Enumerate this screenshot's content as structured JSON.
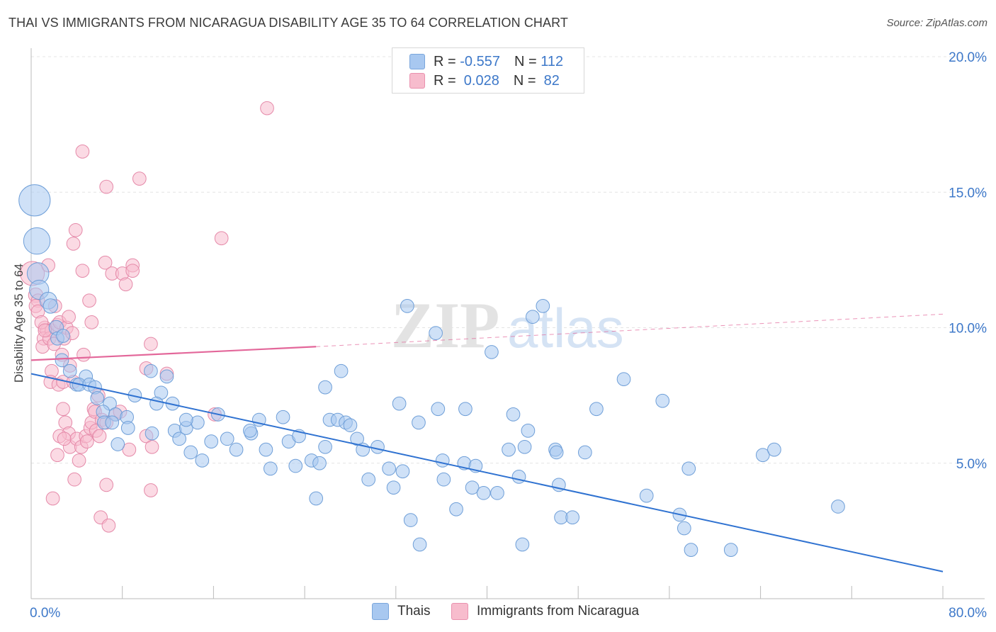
{
  "title": "THAI VS IMMIGRANTS FROM NICARAGUA DISABILITY AGE 35 TO 64 CORRELATION CHART",
  "source": "Source: ZipAtlas.com",
  "watermark": {
    "zip": "ZIP",
    "atlas": "atlas"
  },
  "legend": {
    "rows": [
      {
        "r_label": "R = ",
        "r_value": "-0.557",
        "n_label": "N = ",
        "n_value": "112",
        "color": "#a8c8f0",
        "border": "#7aa6dc"
      },
      {
        "r_label": "R = ",
        "r_value": " 0.028",
        "n_label": "N = ",
        "n_value": " 82",
        "color": "#f7bccd",
        "border": "#e991ae"
      }
    ]
  },
  "bottom_legend": [
    {
      "label": "Thais",
      "color": "#a8c8f0",
      "border": "#7aa6dc"
    },
    {
      "label": "Immigrants from Nicaragua",
      "color": "#f7bccd",
      "border": "#e991ae"
    }
  ],
  "chart_data": {
    "type": "scatter",
    "title": "THAI VS IMMIGRANTS FROM NICARAGUA DISABILITY AGE 35 TO 64 CORRELATION CHART",
    "xlabel": "",
    "ylabel": "Disability Age 35 to 64",
    "xlim": [
      0,
      80
    ],
    "ylim": [
      0,
      20
    ],
    "x_tick_labels": [
      {
        "value": 0,
        "label": "0.0%"
      },
      {
        "value": 80,
        "label": "80.0%"
      }
    ],
    "y_tick_labels": [
      {
        "value": 5,
        "label": "5.0%"
      },
      {
        "value": 10,
        "label": "10.0%"
      },
      {
        "value": 15,
        "label": "15.0%"
      },
      {
        "value": 20,
        "label": "20.0%"
      }
    ],
    "grid": true,
    "legend_position": "top-center",
    "series": [
      {
        "name": "Thais",
        "color": "#a8c8f0",
        "stroke": "#6f9fd8",
        "trend": {
          "x0": 0,
          "y0": 8.3,
          "x1": 80,
          "y1": 1.0,
          "color": "#2f72d1"
        },
        "points": [
          [
            0.3,
            14.7,
            2.6
          ],
          [
            0.5,
            13.2,
            2.2
          ],
          [
            0.6,
            12.0,
            1.8
          ],
          [
            0.7,
            11.4,
            1.6
          ],
          [
            1.5,
            11.0,
            1.4
          ],
          [
            1.7,
            10.8,
            1.2
          ],
          [
            2.2,
            10.0,
            1.2
          ],
          [
            2.3,
            9.6,
            1.1
          ],
          [
            2.8,
            9.7,
            1.1
          ],
          [
            2.7,
            8.8,
            1.1
          ],
          [
            3.4,
            8.4,
            1.1
          ],
          [
            4.8,
            8.2,
            1.1
          ],
          [
            4.0,
            7.9,
            1.1
          ],
          [
            4.2,
            7.9,
            1.1
          ],
          [
            5.1,
            7.9,
            1.1
          ],
          [
            5.6,
            7.8,
            1.1
          ],
          [
            5.8,
            7.4,
            1.1
          ],
          [
            6.9,
            7.2,
            1.1
          ],
          [
            6.3,
            6.9,
            1.1
          ],
          [
            7.4,
            6.8,
            1.1
          ],
          [
            8.4,
            6.7,
            1.1
          ],
          [
            9.1,
            7.5,
            1.1
          ],
          [
            6.4,
            6.5,
            1.1
          ],
          [
            7.1,
            6.5,
            1.1
          ],
          [
            7.6,
            5.7,
            1.1
          ],
          [
            8.5,
            6.3,
            1.1
          ],
          [
            10.6,
            6.1,
            1.1
          ],
          [
            11.4,
            7.6,
            1.1
          ],
          [
            11.0,
            7.2,
            1.1
          ],
          [
            12.4,
            7.2,
            1.1
          ],
          [
            10.5,
            8.4,
            1.1
          ],
          [
            11.9,
            8.2,
            1.1
          ],
          [
            12.6,
            6.2,
            1.1
          ],
          [
            13.0,
            5.9,
            1.1
          ],
          [
            13.6,
            6.3,
            1.1
          ],
          [
            14.0,
            5.4,
            1.1
          ],
          [
            14.6,
            6.5,
            1.1
          ],
          [
            13.6,
            6.6,
            1.1
          ],
          [
            15.0,
            5.1,
            1.1
          ],
          [
            15.8,
            5.8,
            1.1
          ],
          [
            16.4,
            6.8,
            1.1
          ],
          [
            17.2,
            5.9,
            1.1
          ],
          [
            18.0,
            5.5,
            1.1
          ],
          [
            19.3,
            6.1,
            1.1
          ],
          [
            19.2,
            6.2,
            1.1
          ],
          [
            20.0,
            6.6,
            1.1
          ],
          [
            20.6,
            5.5,
            1.1
          ],
          [
            21.0,
            4.8,
            1.1
          ],
          [
            22.1,
            6.7,
            1.1
          ],
          [
            22.6,
            5.8,
            1.1
          ],
          [
            23.2,
            4.9,
            1.1
          ],
          [
            23.5,
            6.0,
            1.1
          ],
          [
            24.6,
            5.1,
            1.1
          ],
          [
            25.3,
            5.0,
            1.1
          ],
          [
            25.8,
            5.6,
            1.1
          ],
          [
            25.0,
            3.7,
            1.1
          ],
          [
            25.8,
            7.8,
            1.1
          ],
          [
            26.2,
            6.6,
            1.1
          ],
          [
            26.9,
            6.6,
            1.1
          ],
          [
            27.2,
            8.4,
            1.1
          ],
          [
            27.6,
            6.5,
            1.1
          ],
          [
            28.0,
            6.4,
            1.1
          ],
          [
            28.6,
            5.9,
            1.1
          ],
          [
            29.1,
            5.5,
            1.1
          ],
          [
            29.6,
            4.4,
            1.1
          ],
          [
            30.4,
            5.6,
            1.1
          ],
          [
            31.4,
            4.8,
            1.1
          ],
          [
            31.8,
            4.1,
            1.1
          ],
          [
            32.3,
            7.2,
            1.1
          ],
          [
            32.6,
            4.7,
            1.1
          ],
          [
            33.0,
            10.8,
            1.1
          ],
          [
            33.3,
            2.9,
            1.1
          ],
          [
            34.0,
            6.5,
            1.1
          ],
          [
            34.1,
            2.0,
            1.1
          ],
          [
            35.5,
            9.8,
            1.1
          ],
          [
            35.7,
            7.0,
            1.1
          ],
          [
            36.1,
            5.1,
            1.1
          ],
          [
            36.2,
            4.4,
            1.1
          ],
          [
            37.3,
            3.3,
            1.1
          ],
          [
            38.0,
            5.0,
            1.1
          ],
          [
            38.1,
            7.0,
            1.1
          ],
          [
            38.7,
            4.1,
            1.1
          ],
          [
            39.0,
            4.9,
            1.1
          ],
          [
            39.7,
            3.9,
            1.1
          ],
          [
            40.4,
            9.1,
            1.1
          ],
          [
            40.9,
            3.9,
            1.1
          ],
          [
            41.9,
            5.5,
            1.1
          ],
          [
            42.3,
            6.8,
            1.1
          ],
          [
            42.8,
            4.5,
            1.1
          ],
          [
            43.1,
            2.0,
            1.1
          ],
          [
            43.3,
            5.6,
            1.1
          ],
          [
            43.6,
            6.2,
            1.1
          ],
          [
            44.0,
            10.4,
            1.1
          ],
          [
            44.9,
            10.8,
            1.1
          ],
          [
            46.0,
            5.5,
            1.1
          ],
          [
            46.1,
            5.4,
            1.1
          ],
          [
            46.3,
            4.2,
            1.1
          ],
          [
            46.5,
            3.0,
            1.1
          ],
          [
            47.5,
            3.0,
            1.1
          ],
          [
            48.6,
            5.4,
            1.1
          ],
          [
            49.6,
            7.0,
            1.1
          ],
          [
            52.0,
            8.1,
            1.1
          ],
          [
            54.0,
            3.8,
            1.1
          ],
          [
            55.4,
            7.3,
            1.1
          ],
          [
            56.9,
            3.1,
            1.1
          ],
          [
            57.3,
            2.6,
            1.1
          ],
          [
            57.7,
            4.8,
            1.1
          ],
          [
            57.9,
            1.8,
            1.1
          ],
          [
            61.4,
            1.8,
            1.1
          ],
          [
            64.2,
            5.3,
            1.1
          ],
          [
            65.2,
            5.5,
            1.1
          ],
          [
            70.8,
            3.4,
            1.1
          ]
        ]
      },
      {
        "name": "Immigrants from Nicaragua",
        "color": "#f7bccd",
        "stroke": "#e58aa9",
        "trend": {
          "x0": 0,
          "y0": 8.8,
          "x1": 25,
          "y1": 9.3,
          "dash_to_x": 80,
          "dash_to_y": 10.5,
          "color": "#e3679a"
        },
        "points": [
          [
            0.1,
            12.0,
            2.0
          ],
          [
            0.4,
            11.2,
            1.2
          ],
          [
            0.6,
            11.0,
            1.1
          ],
          [
            0.4,
            10.8,
            1.1
          ],
          [
            0.6,
            10.6,
            1.1
          ],
          [
            1.2,
            10.0,
            1.1
          ],
          [
            1.4,
            9.9,
            1.1
          ],
          [
            0.9,
            10.2,
            1.1
          ],
          [
            1.5,
            12.3,
            1.1
          ],
          [
            1.1,
            9.6,
            1.1
          ],
          [
            1.8,
            9.9,
            1.1
          ],
          [
            1.0,
            9.3,
            1.1
          ],
          [
            1.6,
            9.6,
            1.1
          ],
          [
            2.0,
            9.4,
            1.1
          ],
          [
            2.1,
            10.8,
            1.1
          ],
          [
            2.3,
            10.1,
            1.1
          ],
          [
            2.5,
            10.2,
            1.1
          ],
          [
            2.7,
            9.0,
            1.1
          ],
          [
            2.9,
            9.6,
            1.1
          ],
          [
            3.1,
            10.0,
            1.1
          ],
          [
            3.3,
            10.4,
            1.1
          ],
          [
            3.6,
            9.8,
            1.1
          ],
          [
            3.4,
            8.6,
            1.1
          ],
          [
            1.8,
            8.4,
            1.1
          ],
          [
            1.7,
            8.0,
            1.1
          ],
          [
            2.4,
            7.9,
            1.1
          ],
          [
            2.8,
            8.0,
            1.1
          ],
          [
            3.7,
            8.0,
            1.1
          ],
          [
            4.6,
            9.0,
            1.1
          ],
          [
            4.5,
            12.1,
            1.1
          ],
          [
            5.1,
            11.0,
            1.1
          ],
          [
            5.3,
            10.2,
            1.1
          ],
          [
            3.7,
            13.1,
            1.1
          ],
          [
            3.9,
            13.6,
            1.1
          ],
          [
            4.5,
            16.5,
            1.1
          ],
          [
            6.6,
            15.2,
            1.1
          ],
          [
            6.5,
            12.4,
            1.1
          ],
          [
            7.1,
            12.0,
            1.1
          ],
          [
            8.0,
            12.0,
            1.1
          ],
          [
            8.3,
            11.6,
            1.1
          ],
          [
            8.9,
            12.3,
            1.1
          ],
          [
            8.9,
            12.1,
            1.1
          ],
          [
            9.5,
            15.5,
            1.1
          ],
          [
            10.5,
            9.4,
            1.1
          ],
          [
            10.1,
            8.5,
            1.1
          ],
          [
            11.9,
            8.3,
            1.1
          ],
          [
            16.7,
            13.3,
            1.1
          ],
          [
            20.7,
            18.1,
            1.1
          ],
          [
            2.8,
            7.0,
            1.1
          ],
          [
            3.0,
            6.5,
            1.1
          ],
          [
            3.3,
            6.1,
            1.1
          ],
          [
            2.5,
            6.0,
            1.1
          ],
          [
            3.4,
            5.6,
            1.1
          ],
          [
            2.3,
            5.3,
            1.1
          ],
          [
            4.0,
            5.9,
            1.1
          ],
          [
            4.4,
            5.6,
            1.1
          ],
          [
            4.8,
            6.0,
            1.1
          ],
          [
            4.2,
            5.1,
            1.1
          ],
          [
            5.2,
            6.3,
            1.1
          ],
          [
            5.3,
            6.5,
            1.1
          ],
          [
            5.5,
            7.0,
            1.1
          ],
          [
            5.6,
            6.9,
            1.1
          ],
          [
            5.9,
            7.5,
            1.1
          ],
          [
            6.2,
            6.6,
            1.1
          ],
          [
            5.7,
            6.2,
            1.1
          ],
          [
            6.0,
            6.0,
            1.1
          ],
          [
            7.4,
            6.8,
            1.1
          ],
          [
            7.8,
            6.9,
            1.1
          ],
          [
            8.6,
            5.5,
            1.1
          ],
          [
            10.1,
            6.0,
            1.1
          ],
          [
            10.6,
            5.6,
            1.1
          ],
          [
            16.1,
            6.8,
            1.1
          ],
          [
            6.6,
            4.2,
            1.1
          ],
          [
            6.1,
            3.0,
            1.1
          ],
          [
            6.8,
            2.7,
            1.1
          ],
          [
            1.9,
            3.7,
            1.1
          ],
          [
            10.5,
            4.0,
            1.1
          ],
          [
            6.6,
            6.5,
            1.1
          ],
          [
            4.9,
            5.8,
            1.1
          ],
          [
            3.8,
            4.4,
            1.1
          ],
          [
            2.9,
            5.9,
            1.1
          ],
          [
            1.2,
            9.9,
            1.1
          ]
        ]
      }
    ]
  }
}
